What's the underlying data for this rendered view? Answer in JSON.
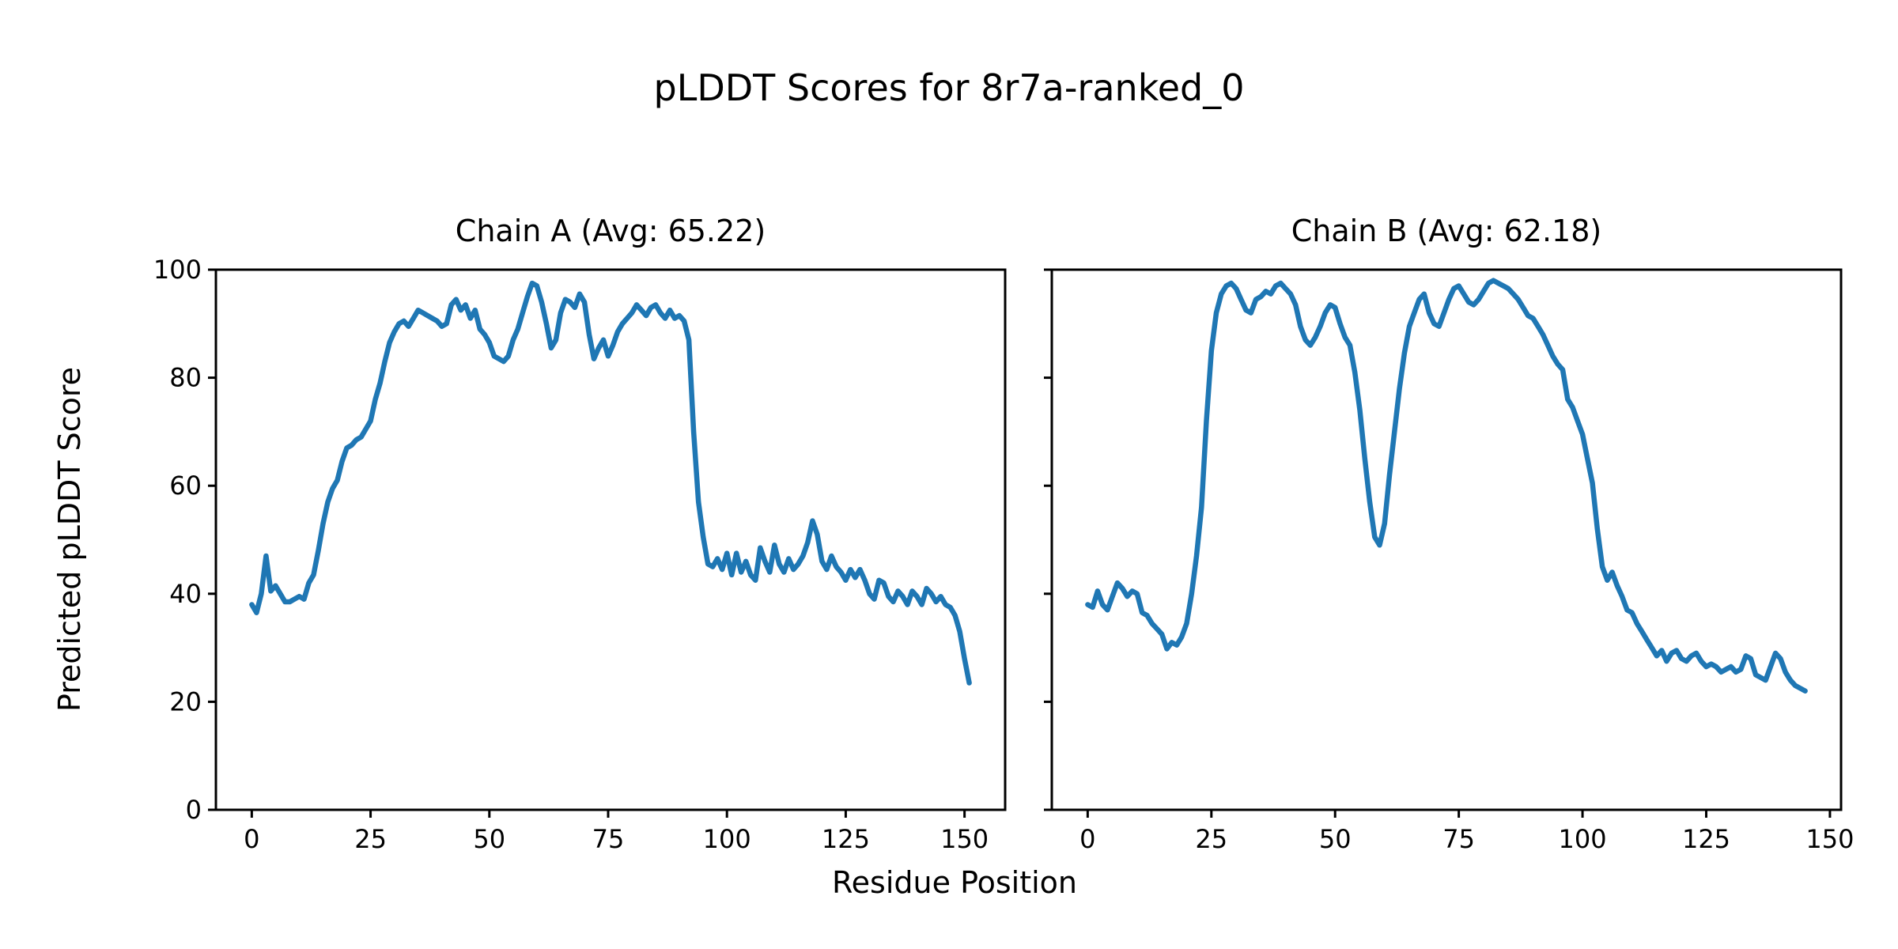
{
  "figure": {
    "suptitle": "pLDDT Scores for 8r7a-ranked_0",
    "xlabel": "Residue Position",
    "ylabel": "Predicted pLDDT Score",
    "background_color": "#ffffff",
    "text_color": "#000000",
    "axis_color": "#000000"
  },
  "chart_data": [
    {
      "type": "line",
      "title": "Chain A (Avg: 65.22)",
      "average": 65.22,
      "line_color": "#1f77b4",
      "x_ticks": [
        0,
        25,
        50,
        75,
        100,
        125,
        150
      ],
      "y_ticks": [
        0,
        20,
        40,
        60,
        80,
        100
      ],
      "xlim": [
        -7.55,
        158.55
      ],
      "ylim": [
        0,
        100
      ],
      "grid": false,
      "show_y_tick_labels": true,
      "x_start": 0,
      "values": [
        38,
        36.5,
        40,
        47,
        40.5,
        41.5,
        40,
        38.5,
        38.5,
        39,
        39.5,
        39,
        42,
        43.5,
        48,
        53,
        57,
        59.5,
        61,
        64.5,
        67,
        67.5,
        68.5,
        69,
        70.5,
        72,
        76,
        79,
        83,
        86.5,
        88.5,
        90,
        90.5,
        89.5,
        91,
        92.5,
        92,
        91.5,
        91,
        90.5,
        89.5,
        90,
        93.5,
        94.5,
        92.5,
        93.5,
        91,
        92.5,
        89,
        88,
        86.5,
        84,
        83.5,
        83,
        84,
        87,
        89,
        92,
        95,
        97.5,
        97,
        94,
        90,
        85.5,
        87,
        92,
        94.5,
        94,
        93,
        95.5,
        94,
        88,
        83.5,
        85.5,
        87,
        84,
        86,
        88.5,
        90,
        91,
        92,
        93.5,
        92.5,
        91.5,
        93,
        93.5,
        92,
        91,
        92.5,
        91,
        91.5,
        90.5,
        87,
        70,
        57,
        50.5,
        45.5,
        45,
        46.5,
        44.5,
        47.5,
        43.5,
        47.5,
        44,
        46,
        43.5,
        42.5,
        48.5,
        46,
        44,
        49,
        45.5,
        44,
        46.5,
        44.5,
        45.5,
        47,
        49.5,
        53.5,
        51,
        46,
        44.5,
        47,
        45,
        44,
        42.5,
        44.5,
        43,
        44.5,
        42.5,
        40,
        39,
        42.5,
        42,
        39.5,
        38.5,
        40.5,
        39.5,
        38,
        40.5,
        39.5,
        38,
        41,
        40,
        38.5,
        39.5,
        38,
        37.5,
        36,
        33,
        28,
        23.5
      ]
    },
    {
      "type": "line",
      "title": "Chain B (Avg: 62.18)",
      "average": 62.18,
      "line_color": "#1f77b4",
      "x_ticks": [
        0,
        25,
        50,
        75,
        100,
        125,
        150
      ],
      "y_ticks": [
        0,
        20,
        40,
        60,
        80,
        100
      ],
      "xlim": [
        -7.25,
        152.25
      ],
      "ylim": [
        0,
        100
      ],
      "grid": false,
      "show_y_tick_labels": false,
      "x_start": 0,
      "values": [
        38,
        37.5,
        40.5,
        38,
        37,
        39.5,
        42,
        41,
        39.5,
        40.5,
        40,
        36.5,
        36,
        34.5,
        33.5,
        32.5,
        29.8,
        31,
        30.5,
        32,
        34.5,
        40,
        47,
        56,
        72,
        85,
        92,
        95.5,
        97,
        97.5,
        96.5,
        94.5,
        92.5,
        92,
        94.5,
        95,
        96,
        95.5,
        97,
        97.5,
        96.5,
        95.5,
        93.5,
        89.5,
        87,
        86,
        87.5,
        89.5,
        92,
        93.5,
        93,
        90,
        87.5,
        86,
        81,
        74,
        65,
        57,
        50.5,
        49,
        53,
        62,
        70,
        78,
        84.5,
        89.5,
        92,
        94.5,
        95.5,
        92,
        90,
        89.5,
        92,
        94.5,
        96.5,
        97,
        95.5,
        94,
        93.5,
        94.5,
        96,
        97.5,
        98,
        97.5,
        97,
        96.5,
        95.5,
        94.5,
        93,
        91.5,
        91,
        89.5,
        88,
        86,
        84,
        82.5,
        81.5,
        76,
        74.5,
        72,
        69.5,
        65,
        60.5,
        52,
        45,
        42.5,
        44,
        41.5,
        39.5,
        37,
        36.5,
        34.5,
        33,
        31.5,
        30,
        28.5,
        29.5,
        27.5,
        29,
        29.5,
        28,
        27.5,
        28.5,
        29,
        27.5,
        26.5,
        27,
        26.5,
        25.5,
        26,
        26.5,
        25.5,
        26,
        28.5,
        28,
        25,
        24.5,
        24,
        26.5,
        29,
        28,
        25.5,
        24,
        23,
        22.5,
        22
      ]
    }
  ]
}
